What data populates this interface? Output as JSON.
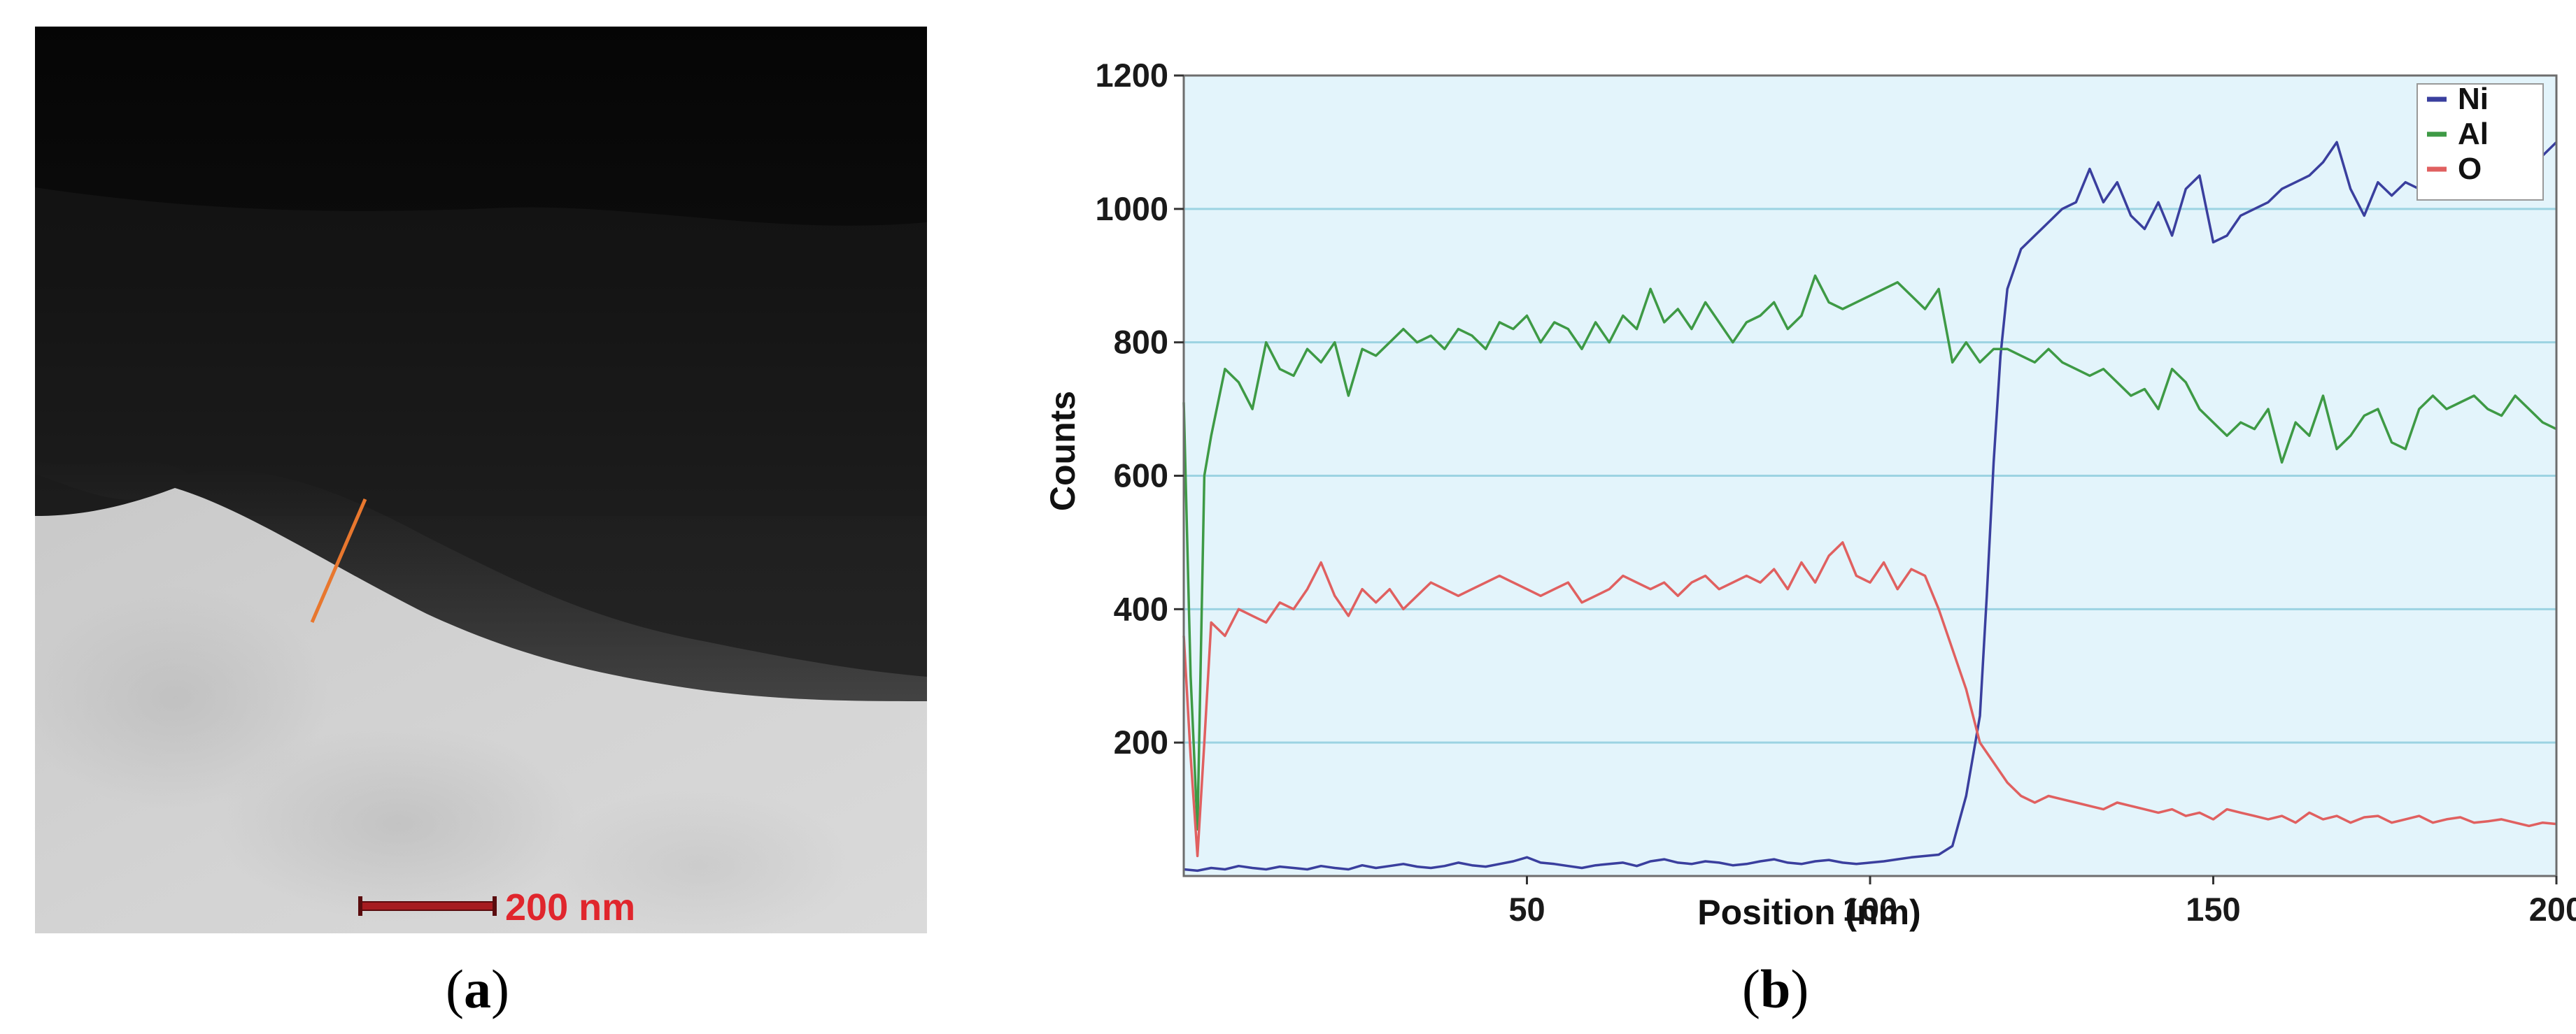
{
  "panels": {
    "a": {
      "label_open": "(",
      "label_letter": "a",
      "label_close": ")",
      "scale_bar": "200 nm",
      "scale_color": "#e0262d",
      "line_color": "#e8772e"
    },
    "b": {
      "label_open": "(",
      "label_letter": "b",
      "label_close": ")"
    }
  },
  "chart_data": {
    "type": "line",
    "title": "",
    "xlabel": "Position (nm)",
    "ylabel": "Counts",
    "xlim": [
      0,
      200
    ],
    "ylim": [
      0,
      1200
    ],
    "xticks": [
      50,
      100,
      150,
      200
    ],
    "yticks": [
      200,
      400,
      600,
      800,
      1000,
      1200
    ],
    "grid": "horizontal",
    "plot_background": "#e3f4fb",
    "gridline_color": "#9cd3e2",
    "legend_position": "top-right",
    "series": [
      {
        "name": "Ni",
        "color": "#3a3f9e",
        "x": [
          0,
          2,
          4,
          6,
          8,
          10,
          12,
          14,
          16,
          18,
          20,
          22,
          24,
          26,
          28,
          30,
          32,
          34,
          36,
          38,
          40,
          42,
          44,
          46,
          48,
          50,
          52,
          54,
          56,
          58,
          60,
          62,
          64,
          66,
          68,
          70,
          72,
          74,
          76,
          78,
          80,
          82,
          84,
          86,
          88,
          90,
          92,
          94,
          96,
          98,
          100,
          102,
          104,
          106,
          108,
          110,
          112,
          114,
          116,
          117,
          118,
          119,
          120,
          122,
          124,
          126,
          128,
          130,
          132,
          134,
          136,
          138,
          140,
          142,
          144,
          146,
          148,
          150,
          152,
          154,
          156,
          158,
          160,
          162,
          164,
          166,
          168,
          170,
          172,
          174,
          176,
          178,
          180,
          182,
          184,
          186,
          188,
          190,
          192,
          194,
          196,
          198,
          200
        ],
        "y": [
          10,
          8,
          12,
          10,
          15,
          12,
          10,
          14,
          12,
          10,
          15,
          12,
          10,
          16,
          12,
          15,
          18,
          14,
          12,
          15,
          20,
          16,
          14,
          18,
          22,
          28,
          20,
          18,
          15,
          12,
          16,
          18,
          20,
          15,
          22,
          25,
          20,
          18,
          22,
          20,
          16,
          18,
          22,
          25,
          20,
          18,
          22,
          24,
          20,
          18,
          20,
          22,
          25,
          28,
          30,
          32,
          45,
          120,
          240,
          420,
          620,
          780,
          880,
          940,
          960,
          980,
          1000,
          1010,
          1060,
          1010,
          1040,
          990,
          970,
          1010,
          960,
          1030,
          1050,
          950,
          960,
          990,
          1000,
          1010,
          1030,
          1040,
          1050,
          1070,
          1100,
          1030,
          990,
          1040,
          1020,
          1040,
          1030,
          1050,
          1060,
          1040,
          1070,
          1090,
          1050,
          1060,
          1070,
          1080,
          1100
        ]
      },
      {
        "name": "Al",
        "color": "#3e9a45",
        "x": [
          0,
          1,
          2,
          3,
          4,
          6,
          8,
          10,
          12,
          14,
          16,
          18,
          20,
          22,
          24,
          26,
          28,
          30,
          32,
          34,
          36,
          38,
          40,
          42,
          44,
          46,
          48,
          50,
          52,
          54,
          56,
          58,
          60,
          62,
          64,
          66,
          68,
          70,
          72,
          74,
          76,
          78,
          80,
          82,
          84,
          86,
          88,
          90,
          92,
          94,
          96,
          98,
          100,
          102,
          104,
          106,
          108,
          110,
          112,
          114,
          116,
          118,
          120,
          122,
          124,
          126,
          128,
          130,
          132,
          134,
          136,
          138,
          140,
          142,
          144,
          146,
          148,
          150,
          152,
          154,
          156,
          158,
          160,
          162,
          164,
          166,
          168,
          170,
          172,
          174,
          176,
          178,
          180,
          182,
          184,
          186,
          188,
          190,
          192,
          194,
          196,
          198,
          200
        ],
        "y": [
          710,
          300,
          70,
          600,
          660,
          760,
          740,
          700,
          800,
          760,
          750,
          790,
          770,
          800,
          720,
          790,
          780,
          800,
          820,
          800,
          810,
          790,
          820,
          810,
          790,
          830,
          820,
          840,
          800,
          830,
          820,
          790,
          830,
          800,
          840,
          820,
          880,
          830,
          850,
          820,
          860,
          830,
          800,
          830,
          840,
          860,
          820,
          840,
          900,
          860,
          850,
          860,
          870,
          880,
          890,
          870,
          850,
          880,
          770,
          800,
          770,
          790,
          790,
          780,
          770,
          790,
          770,
          760,
          750,
          760,
          740,
          720,
          730,
          700,
          760,
          740,
          700,
          680,
          660,
          680,
          670,
          700,
          620,
          680,
          660,
          720,
          640,
          660,
          690,
          700,
          650,
          640,
          700,
          720,
          700,
          710,
          720,
          700,
          690,
          720,
          700,
          680,
          670
        ]
      },
      {
        "name": "O",
        "color": "#e06060",
        "x": [
          0,
          1,
          2,
          3,
          4,
          6,
          8,
          10,
          12,
          14,
          16,
          18,
          20,
          22,
          24,
          26,
          28,
          30,
          32,
          34,
          36,
          38,
          40,
          42,
          44,
          46,
          48,
          50,
          52,
          54,
          56,
          58,
          60,
          62,
          64,
          66,
          68,
          70,
          72,
          74,
          76,
          78,
          80,
          82,
          84,
          86,
          88,
          90,
          92,
          94,
          96,
          98,
          100,
          102,
          104,
          106,
          108,
          110,
          112,
          114,
          116,
          118,
          120,
          122,
          124,
          126,
          128,
          130,
          132,
          134,
          136,
          138,
          140,
          142,
          144,
          146,
          148,
          150,
          152,
          154,
          156,
          158,
          160,
          162,
          164,
          166,
          168,
          170,
          172,
          174,
          176,
          178,
          180,
          182,
          184,
          186,
          188,
          190,
          192,
          194,
          196,
          198,
          200
        ],
        "y": [
          360,
          180,
          30,
          200,
          380,
          360,
          400,
          390,
          380,
          410,
          400,
          430,
          470,
          420,
          390,
          430,
          410,
          430,
          400,
          420,
          440,
          430,
          420,
          430,
          440,
          450,
          440,
          430,
          420,
          430,
          440,
          410,
          420,
          430,
          450,
          440,
          430,
          440,
          420,
          440,
          450,
          430,
          440,
          450,
          440,
          460,
          430,
          470,
          440,
          480,
          500,
          450,
          440,
          470,
          430,
          460,
          450,
          400,
          340,
          280,
          200,
          170,
          140,
          120,
          110,
          120,
          115,
          110,
          105,
          100,
          110,
          105,
          100,
          95,
          100,
          90,
          95,
          85,
          100,
          95,
          90,
          85,
          90,
          80,
          95,
          85,
          90,
          80,
          88,
          90,
          80,
          85,
          90,
          80,
          85,
          88,
          80,
          82,
          85,
          80,
          75,
          80,
          78
        ]
      }
    ]
  }
}
